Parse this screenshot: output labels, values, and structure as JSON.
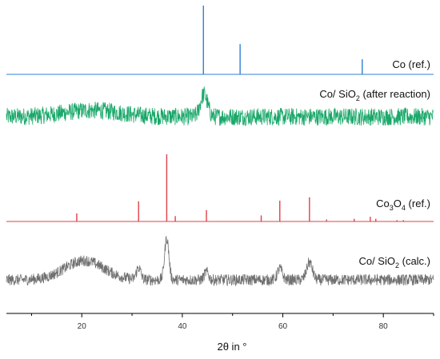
{
  "chart_data": {
    "type": "line",
    "title": "",
    "xlabel": "2θ in °",
    "ylabel": "",
    "xlim": [
      5,
      90
    ],
    "x_ticks": [
      20,
      40,
      60,
      80
    ],
    "grid": false,
    "series": [
      {
        "name": "Co (ref.)",
        "kind": "stick",
        "color": "#2f7fd6",
        "peaks": [
          {
            "x": 44.2,
            "i": 100
          },
          {
            "x": 51.5,
            "i": 44
          },
          {
            "x": 75.8,
            "i": 22
          }
        ]
      },
      {
        "name": "Co/ SiO2 (after reaction)",
        "label_main": "Co/ SiO",
        "label_sub": "2",
        "label_rest": " (after reaction)",
        "kind": "noisy",
        "color": "#1aa86a",
        "baseline": 0,
        "noise": 11,
        "humps": [
          {
            "x": 22,
            "h": 8,
            "w": 8
          },
          {
            "x": 44.3,
            "h": 28,
            "w": 1.0
          }
        ]
      },
      {
        "name": "Co3O4 (ref.)",
        "label_main": "Co",
        "label_sub": "3",
        "label_mid": "O",
        "label_sub2": "4",
        "label_rest": " (ref.)",
        "kind": "stick",
        "color": "#e0404a",
        "peaks": [
          {
            "x": 19.0,
            "i": 12
          },
          {
            "x": 31.3,
            "i": 30
          },
          {
            "x": 36.9,
            "i": 100
          },
          {
            "x": 38.6,
            "i": 8
          },
          {
            "x": 44.8,
            "i": 17
          },
          {
            "x": 55.7,
            "i": 9
          },
          {
            "x": 59.4,
            "i": 31
          },
          {
            "x": 65.3,
            "i": 36
          },
          {
            "x": 68.7,
            "i": 3
          },
          {
            "x": 74.2,
            "i": 4
          },
          {
            "x": 77.4,
            "i": 7
          },
          {
            "x": 78.5,
            "i": 4
          },
          {
            "x": 82.7,
            "i": 2
          },
          {
            "x": 84.0,
            "i": 2
          }
        ]
      },
      {
        "name": "Co/ SiO2 (calc.)",
        "label_main": "Co/ SiO",
        "label_sub": "2",
        "label_rest": " (calc.)",
        "kind": "noisy",
        "color": "#707070",
        "baseline": 0,
        "noise": 7,
        "humps": [
          {
            "x": 20.5,
            "h": 24,
            "w": 5.5
          },
          {
            "x": 31.3,
            "h": 15,
            "w": 0.6
          },
          {
            "x": 36.9,
            "h": 52,
            "w": 0.6
          },
          {
            "x": 44.8,
            "h": 10,
            "w": 0.6
          },
          {
            "x": 59.4,
            "h": 14,
            "w": 0.7
          },
          {
            "x": 65.3,
            "h": 22,
            "w": 0.8
          }
        ]
      }
    ]
  },
  "labels": {
    "co_ref": "Co (ref.)",
    "after_main": "Co/ SiO",
    "after_sub": "2",
    "after_rest": " (after reaction)",
    "co3o4_a": "Co",
    "co3o4_sub1": "3",
    "co3o4_b": "O",
    "co3o4_sub2": "4",
    "co3o4_rest": " (ref.)",
    "calc_main": "Co/ SiO",
    "calc_sub": "2",
    "calc_rest": " (calc.)",
    "x_axis_title": "2θ in °"
  }
}
